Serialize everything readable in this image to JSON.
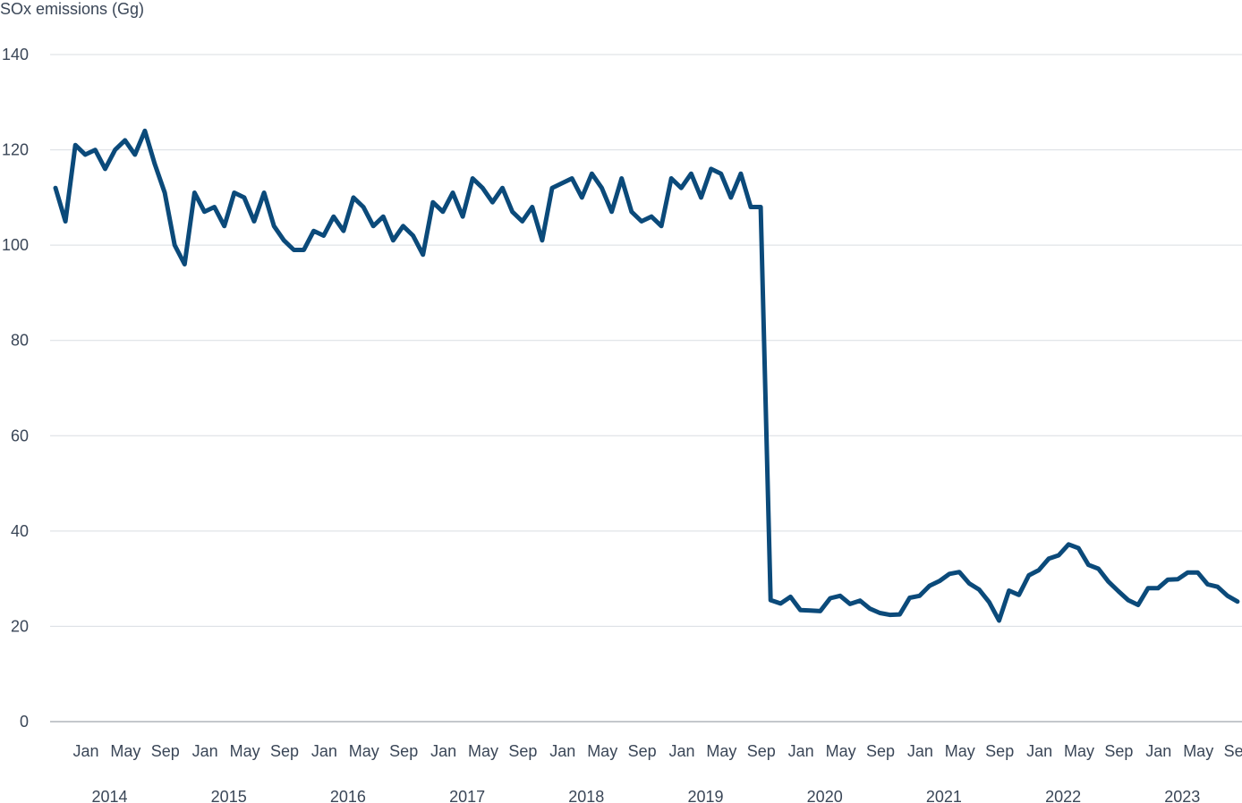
{
  "chart_data": {
    "type": "line",
    "title": "",
    "xlabel": "",
    "ylabel": "SOx emissions (Gg)",
    "ylim": [
      0,
      140
    ],
    "yticks": [
      0,
      20,
      40,
      60,
      80,
      100,
      120,
      140
    ],
    "grid": true,
    "legend": "none",
    "colors": {
      "series": "#0b4a7a",
      "grid": "#d9dde2",
      "text": "#3a4657"
    },
    "x_start": "2014-01",
    "x_end": "2023-12",
    "month_ticks": [
      "Jan",
      "May",
      "Sep"
    ],
    "year_ticks": [
      "2014",
      "2015",
      "2016",
      "2017",
      "2018",
      "2019",
      "2020",
      "2021",
      "2022",
      "2023"
    ],
    "series": [
      {
        "values": [
          112,
          105,
          121,
          119,
          120,
          116,
          120,
          122,
          119,
          124,
          117,
          111,
          100,
          96,
          111,
          107,
          108,
          104,
          111,
          110,
          105,
          111,
          104,
          101,
          99,
          99,
          103,
          102,
          106,
          103,
          110,
          108,
          104,
          106,
          101,
          104,
          102,
          98,
          109,
          107,
          111,
          106,
          114,
          112,
          109,
          112,
          107,
          105,
          108,
          101,
          112,
          113,
          114,
          110,
          115,
          112,
          107,
          114,
          107,
          105,
          106,
          104,
          114,
          112,
          115,
          110,
          116,
          115,
          110,
          115,
          108,
          108,
          25.5,
          24.8,
          26.2,
          23.4,
          23.3,
          23.2,
          25.9,
          26.4,
          24.7,
          25.4,
          23.7,
          22.8,
          22.4,
          22.5,
          26.0,
          26.4,
          28.5,
          29.5,
          31.0,
          31.4,
          29.0,
          27.7,
          25.1,
          21.2,
          27.5,
          26.6,
          30.7,
          31.8,
          34.2,
          34.9,
          37.2,
          36.4,
          32.9,
          32.1,
          29.4,
          27.4,
          25.5,
          24.5,
          28.0,
          28.0,
          29.8,
          29.9,
          31.3,
          31.3,
          28.8,
          28.3,
          26.4,
          25.2
        ]
      }
    ]
  }
}
